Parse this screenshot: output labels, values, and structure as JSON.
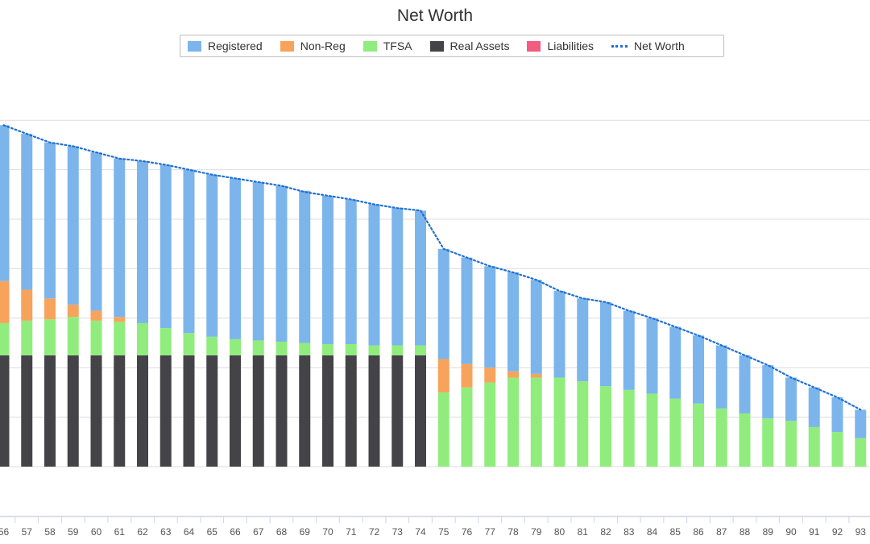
{
  "chart_data": {
    "type": "bar",
    "title": "Net Worth",
    "xlabel": "",
    "ylabel": "",
    "stacked": true,
    "legend_position": "top",
    "grid": true,
    "categories": [
      "56",
      "57",
      "58",
      "59",
      "60",
      "61",
      "62",
      "63",
      "64",
      "65",
      "66",
      "67",
      "68",
      "69",
      "70",
      "71",
      "72",
      "73",
      "74",
      "75",
      "76",
      "77",
      "78",
      "79",
      "80",
      "81",
      "82",
      "83",
      "84",
      "85",
      "86",
      "87",
      "88",
      "89",
      "90",
      "91",
      "92",
      "93"
    ],
    "ylim": [
      0,
      14
    ],
    "series": [
      {
        "name": "Real Assets",
        "color": "#434348",
        "values": [
          4.5,
          4.5,
          4.5,
          4.5,
          4.5,
          4.5,
          4.5,
          4.5,
          4.5,
          4.5,
          4.5,
          4.5,
          4.5,
          4.5,
          4.5,
          4.5,
          4.5,
          4.5,
          4.5,
          0,
          0,
          0,
          0,
          0,
          0,
          0,
          0,
          0,
          0,
          0,
          0,
          0,
          0,
          0,
          0,
          0,
          0,
          0
        ]
      },
      {
        "name": "TFSA",
        "color": "#90ed7d",
        "values": [
          1.3,
          1.4,
          1.45,
          1.55,
          1.4,
          1.35,
          1.3,
          1.1,
          0.9,
          0.75,
          0.65,
          0.6,
          0.55,
          0.5,
          0.45,
          0.45,
          0.4,
          0.4,
          0.4,
          3.0,
          3.2,
          3.4,
          3.6,
          3.6,
          3.6,
          3.45,
          3.25,
          3.1,
          2.95,
          2.75,
          2.55,
          2.35,
          2.15,
          1.95,
          1.85,
          1.6,
          1.4,
          1.15
        ]
      },
      {
        "name": "Non-Reg",
        "color": "#f7a35c",
        "values": [
          1.7,
          1.25,
          0.85,
          0.5,
          0.4,
          0.2,
          0,
          0,
          0,
          0,
          0,
          0,
          0,
          0,
          0,
          0,
          0,
          0,
          0,
          1.35,
          0.95,
          0.6,
          0.25,
          0.15,
          0,
          0,
          0,
          0,
          0,
          0,
          0,
          0,
          0,
          0,
          0,
          0,
          0,
          0
        ]
      },
      {
        "name": "Registered",
        "color": "#7cb5ec",
        "values": [
          6.3,
          6.3,
          6.3,
          6.4,
          6.4,
          6.4,
          6.55,
          6.6,
          6.6,
          6.55,
          6.5,
          6.4,
          6.3,
          6.15,
          6.0,
          5.85,
          5.7,
          5.55,
          5.45,
          4.45,
          4.3,
          4.1,
          4.0,
          3.8,
          3.5,
          3.35,
          3.4,
          3.2,
          3.05,
          2.9,
          2.75,
          2.55,
          2.35,
          2.15,
          1.75,
          1.6,
          1.4,
          1.15
        ]
      },
      {
        "name": "Liabilities",
        "color": "#f15c80",
        "values": [
          0,
          0,
          0,
          0,
          0,
          0,
          0,
          0,
          0,
          0,
          0,
          0,
          0,
          0,
          0,
          0,
          0,
          0,
          0,
          0,
          0,
          0,
          0,
          0,
          0,
          0,
          0,
          0,
          0,
          0,
          0,
          0,
          0,
          0,
          0,
          0,
          0,
          0
        ]
      }
    ],
    "line_series": {
      "name": "Net Worth",
      "color": "#1f6fd1",
      "values": [
        13.8,
        13.45,
        13.1,
        12.95,
        12.7,
        12.45,
        12.35,
        12.2,
        12.0,
        11.8,
        11.65,
        11.5,
        11.35,
        11.1,
        10.95,
        10.8,
        10.6,
        10.45,
        10.35,
        8.8,
        8.45,
        8.1,
        7.85,
        7.55,
        7.1,
        6.8,
        6.65,
        6.3,
        6.0,
        5.65,
        5.3,
        4.9,
        4.5,
        4.1,
        3.6,
        3.2,
        2.8,
        2.3
      ]
    }
  },
  "legend": [
    {
      "label": "Registered",
      "color": "#7cb5ec",
      "kind": "box"
    },
    {
      "label": "Non-Reg",
      "color": "#f7a35c",
      "kind": "box"
    },
    {
      "label": "TFSA",
      "color": "#90ed7d",
      "kind": "box"
    },
    {
      "label": "Real Assets",
      "color": "#434348",
      "kind": "box"
    },
    {
      "label": "Liabilities",
      "color": "#f15c80",
      "kind": "box"
    },
    {
      "label": "Net Worth",
      "color": "#1f6fd1",
      "kind": "dotted-line"
    }
  ]
}
